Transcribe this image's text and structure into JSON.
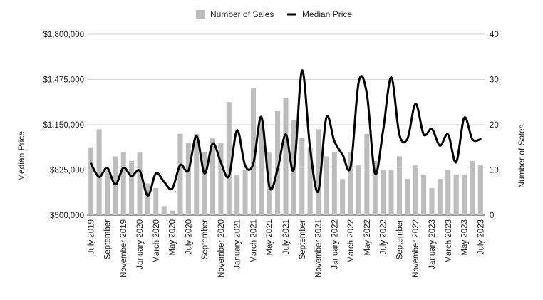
{
  "chart_data": {
    "type": "bar+line",
    "title": "",
    "categories": [
      "July 2019",
      "August 2019",
      "September 2019",
      "October 2019",
      "November 2019",
      "December 2019",
      "January 2020",
      "February 2020",
      "March 2020",
      "April 2020",
      "May 2020",
      "June 2020",
      "July 2020",
      "August 2020",
      "September 2020",
      "October 2020",
      "November 2020",
      "December 2020",
      "January 2021",
      "February 2021",
      "March 2021",
      "April 2021",
      "May 2021",
      "June 2021",
      "July 2021",
      "August 2021",
      "September 2021",
      "October 2021",
      "November 2021",
      "December 2021",
      "January 2022",
      "February 2022",
      "March 2022",
      "April 2022",
      "May 2022",
      "June 2022",
      "July 2022",
      "August 2022",
      "September 2022",
      "October 2022",
      "November 2022",
      "December 2022",
      "January 2023",
      "February 2023",
      "March 2023",
      "April 2023",
      "May 2023",
      "June 2023",
      "July 2023"
    ],
    "x_tick_labels": [
      "July 2019",
      "September",
      "November 2019",
      "January 2020",
      "March 2020",
      "May 2020",
      "July 2020",
      "September",
      "November 2020",
      "January 2021",
      "March 2021",
      "May 2021",
      "July 2021",
      "September",
      "November 2021",
      "January 2022",
      "March 2022",
      "May 2022",
      "July 2022",
      "September",
      "November 2022",
      "January 2023",
      "March 2023",
      "May 2023",
      "July 2023"
    ],
    "series": [
      {
        "name": "Number of Sales",
        "type": "bar",
        "axis": "right",
        "color": "#bdbdbd",
        "values": [
          15,
          19,
          10,
          13,
          14,
          12,
          14,
          7,
          6,
          2,
          1,
          18,
          16,
          18,
          14,
          17,
          16,
          25,
          9,
          10,
          28,
          21,
          14,
          23,
          26,
          21,
          17,
          15,
          19,
          13,
          14,
          8,
          14,
          11,
          18,
          12,
          10,
          10,
          13,
          8,
          11,
          9,
          6,
          8,
          10,
          9,
          9,
          12,
          11
        ]
      },
      {
        "name": "Median Price",
        "type": "line",
        "axis": "left",
        "color": "#000000",
        "values": [
          870000,
          775000,
          840000,
          720000,
          840000,
          780000,
          820000,
          640000,
          800000,
          740000,
          690000,
          860000,
          820000,
          1070000,
          800000,
          1015000,
          880000,
          780000,
          1110000,
          855000,
          870000,
          1205000,
          700000,
          830000,
          1080000,
          830000,
          1540000,
          980000,
          670000,
          1200000,
          1030000,
          935000,
          850000,
          1460000,
          1370000,
          800000,
          1110000,
          1490000,
          1080000,
          1050000,
          1300000,
          1080000,
          1120000,
          1000000,
          1080000,
          880000,
          1200000,
          1045000,
          1045000
        ]
      }
    ],
    "y_left": {
      "label": "Median Price",
      "min": 500000,
      "max": 1800000,
      "ticks": [
        500000,
        825000,
        1150000,
        1475000,
        1800000
      ],
      "tick_labels": [
        "$500,000",
        "$825,000",
        "$1,150,000",
        "$1,475,000",
        "$1,800,000"
      ]
    },
    "y_right": {
      "label": "Number of Sales",
      "min": 0,
      "max": 40,
      "ticks": [
        0,
        10,
        20,
        30,
        40
      ],
      "tick_labels": [
        "0",
        "10",
        "20",
        "30",
        "40"
      ]
    },
    "grid": true,
    "legend": {
      "position": "top-center",
      "items": [
        {
          "label": "Number of Sales",
          "marker": "square",
          "color": "#bdbdbd"
        },
        {
          "label": "Median Price",
          "marker": "line",
          "color": "#000000"
        }
      ]
    }
  }
}
